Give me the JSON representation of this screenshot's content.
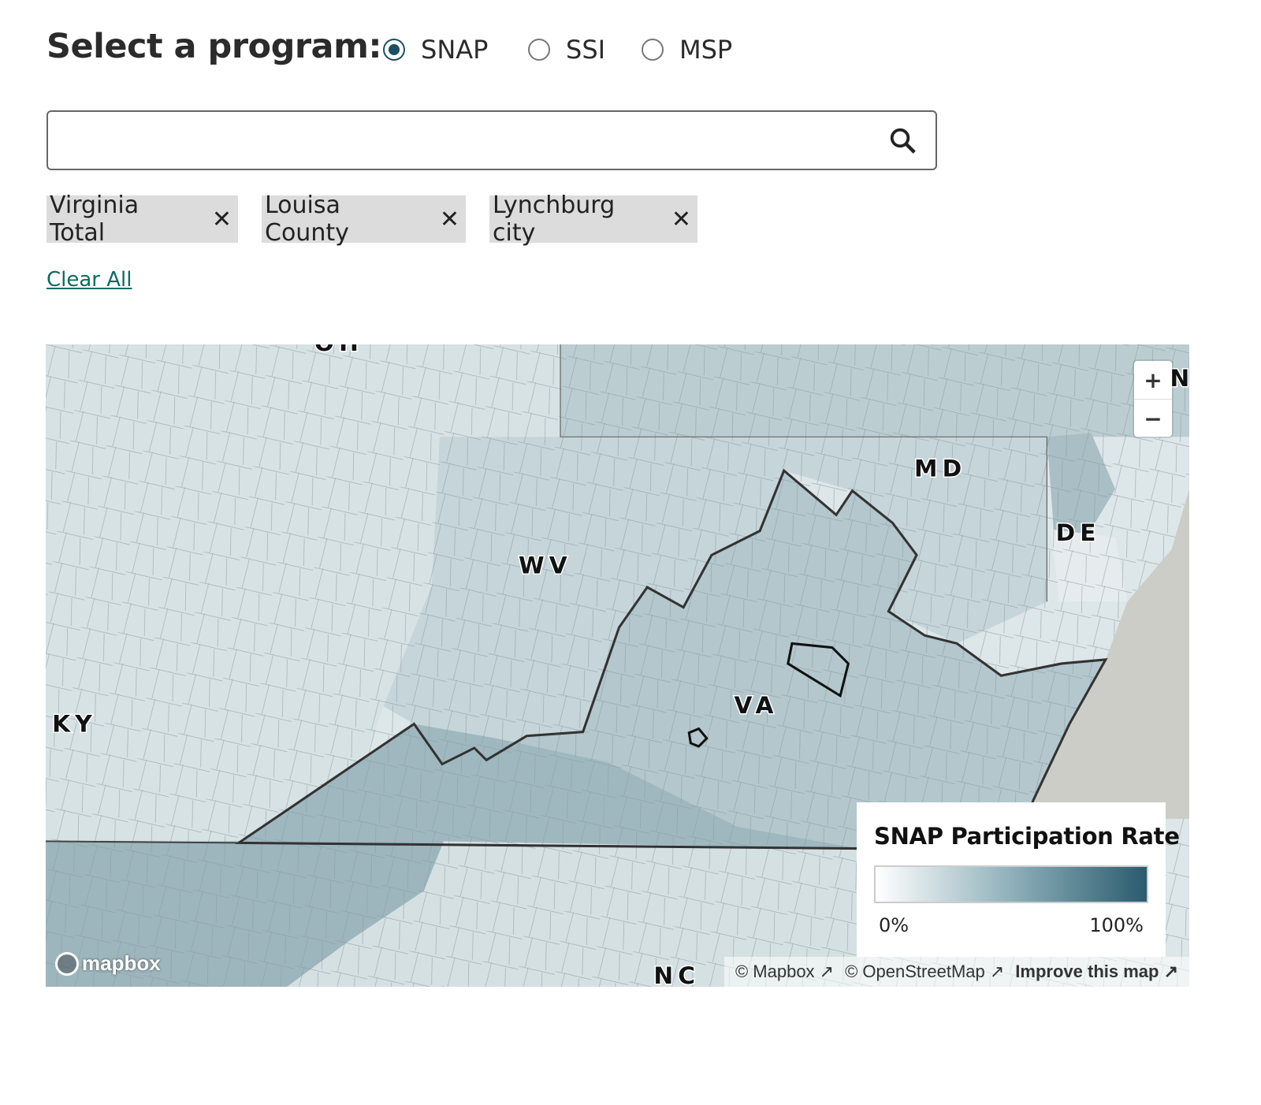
{
  "program_selector": {
    "label": "Select a program:",
    "options": [
      {
        "label": "SNAP",
        "selected": true
      },
      {
        "label": "SSI",
        "selected": false
      },
      {
        "label": "MSP",
        "selected": false
      }
    ]
  },
  "search": {
    "value": "",
    "placeholder": "",
    "icon": "search-icon"
  },
  "chips": [
    {
      "label": "Virginia Total",
      "remove": "✕"
    },
    {
      "label": "Louisa County",
      "remove": "✕"
    },
    {
      "label": "Lynchburg city",
      "remove": "✕"
    }
  ],
  "clear_all": "Clear All",
  "map": {
    "state_labels": {
      "oh": "OH",
      "wv": "WV",
      "ky": "KY",
      "va": "VA",
      "md": "MD",
      "de": "DE",
      "nc": "NC",
      "nj": "N"
    },
    "zoom_in": "+",
    "zoom_out": "−",
    "logo": "mapbox",
    "attribution": [
      "© Mapbox",
      "© OpenStreetMap",
      "Improve this map"
    ],
    "legend": {
      "title": "SNAP Participation Rate",
      "min_label": "0%",
      "max_label": "100%",
      "color_low": "#ffffff",
      "color_high": "#2a5c6e"
    }
  },
  "colors": {
    "accent": "#1c4f63",
    "link": "#0f6b5e",
    "chip_bg": "#dcdcdc"
  }
}
